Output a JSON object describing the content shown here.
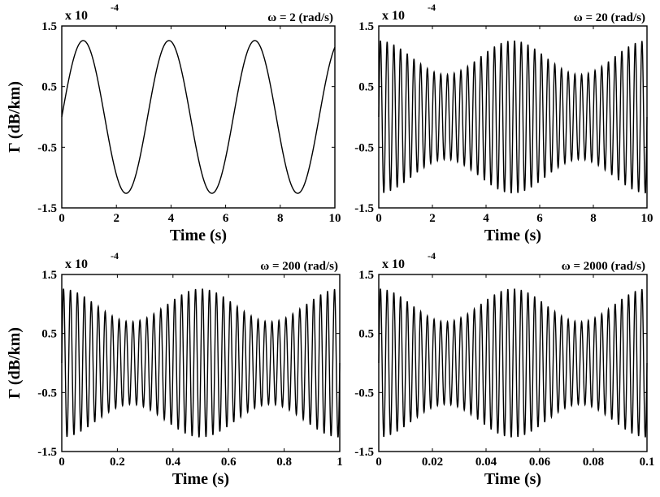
{
  "chart_data": [
    {
      "type": "line",
      "title": "ω = 2 (rad/s)",
      "xlabel": "Time (s)",
      "ylabel": "Γ (dB/km)",
      "multiplier": "x 10",
      "multiplier_exp": "-4",
      "xlim": [
        0,
        10
      ],
      "ylim": [
        -1.5,
        1.5
      ],
      "xticks": [
        "0",
        "2",
        "4",
        "6",
        "8",
        "10"
      ],
      "yticks": [
        "1.5",
        "0.5",
        "-0.5",
        "-1.5"
      ],
      "grid": false,
      "series": [
        {
          "signal": "sinusoid",
          "amplitude": 1.26,
          "angular_frequency_rad_per_s": 2,
          "x_range": [
            0,
            10
          ]
        }
      ]
    },
    {
      "type": "line",
      "title": "ω = 20 (rad/s)",
      "xlabel": "Time (s)",
      "ylabel": "",
      "multiplier": "x 10",
      "multiplier_exp": "-4",
      "xlim": [
        0,
        10
      ],
      "ylim": [
        -1.5,
        1.5
      ],
      "xticks": [
        "0",
        "2",
        "4",
        "6",
        "8",
        "10"
      ],
      "yticks": [
        "1.5",
        "0.5",
        "-0.5",
        "-1.5"
      ],
      "grid": false,
      "series": [
        {
          "signal": "amplitude-modulated oscillation",
          "oscillation_cycles": 40,
          "envelope_max": 1.26,
          "envelope_min": 0.7,
          "envelope_maxima_x": [
            0,
            5,
            10
          ],
          "envelope_minima_x": [
            2.5,
            7.5
          ],
          "x_range": [
            0,
            10
          ]
        }
      ]
    },
    {
      "type": "line",
      "title": "ω = 200 (rad/s)",
      "xlabel": "Time (s)",
      "ylabel": "Γ (dB/km)",
      "multiplier": "x 10",
      "multiplier_exp": "-4",
      "xlim": [
        0,
        1
      ],
      "ylim": [
        -1.5,
        1.5
      ],
      "xticks": [
        "0",
        "0.2",
        "0.4",
        "0.6",
        "0.8",
        "1"
      ],
      "yticks": [
        "1.5",
        "0.5",
        "-0.5",
        "-1.5"
      ],
      "grid": false,
      "series": [
        {
          "signal": "amplitude-modulated oscillation",
          "oscillation_cycles": 40,
          "envelope_max": 1.26,
          "envelope_min": 0.7,
          "envelope_maxima_x": [
            0,
            0.5,
            1
          ],
          "envelope_minima_x": [
            0.25,
            0.75
          ],
          "x_range": [
            0,
            1
          ]
        }
      ]
    },
    {
      "type": "line",
      "title": "ω = 2000 (rad/s)",
      "xlabel": "Time (s)",
      "ylabel": "",
      "multiplier": "x 10",
      "multiplier_exp": "-4",
      "xlim": [
        0,
        0.1
      ],
      "ylim": [
        -1.5,
        1.5
      ],
      "xticks": [
        "0",
        "0.02",
        "0.04",
        "0.06",
        "0.08",
        "0.1"
      ],
      "yticks": [
        "1.5",
        "0.5",
        "-0.5",
        "-1.5"
      ],
      "grid": false,
      "series": [
        {
          "signal": "amplitude-modulated oscillation",
          "oscillation_cycles": 40,
          "envelope_max": 1.26,
          "envelope_min": 0.7,
          "envelope_maxima_x": [
            0,
            0.05,
            0.1
          ],
          "envelope_minima_x": [
            0.025,
            0.075
          ],
          "x_range": [
            0,
            0.1
          ]
        }
      ]
    }
  ]
}
